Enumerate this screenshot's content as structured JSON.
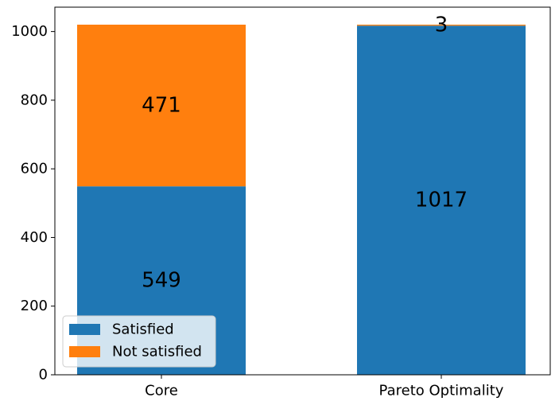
{
  "chart_data": {
    "type": "bar",
    "stacked": true,
    "categories": [
      "Core",
      "Pareto Optimality"
    ],
    "series": [
      {
        "name": "Satisfied",
        "values": [
          549,
          1017
        ],
        "color": "#1f77b4"
      },
      {
        "name": "Not satisfied",
        "values": [
          471,
          3
        ],
        "color": "#ff7f0e"
      }
    ],
    "ylim": [
      0,
      1071
    ],
    "yticks": [
      0,
      200,
      400,
      600,
      800,
      1000
    ],
    "ytick_labels": [
      "0",
      "200",
      "400",
      "600",
      "800",
      "1000"
    ],
    "legend": "lower-left",
    "grid": false,
    "title": "",
    "xlabel": "",
    "ylabel": ""
  }
}
